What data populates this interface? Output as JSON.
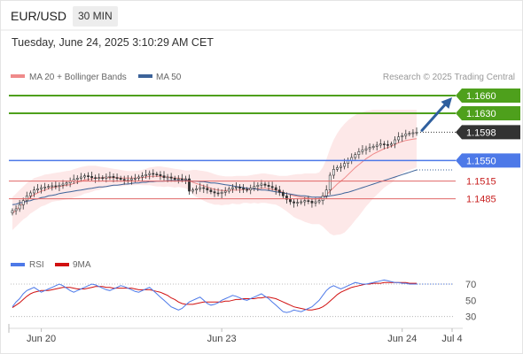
{
  "header": {
    "symbol": "EUR/USD",
    "timeframe": "30 MIN",
    "timestamp": "Tuesday, June 24, 2025 3:10:29 AM CET"
  },
  "legend": {
    "ma20": "MA 20 + Bollinger Bands",
    "ma50": "MA 50",
    "credit": "Research © 2025 Trading Central",
    "rsi": "RSI",
    "rsi_ma": "9MA"
  },
  "colors": {
    "green": "#4ea01c",
    "blue_line": "#4d79e8",
    "red_line": "#e06666",
    "dark": "#333333",
    "arrow": "#2f5f9e",
    "ma20": "#ef8a8a",
    "ma50": "#3c6399",
    "band_fill": "#fbd9d9",
    "rsi_line": "#4d79e8",
    "rsi_ma_line": "#d11010",
    "candle": "#333333"
  },
  "chart_data": [
    {
      "type": "candlestick",
      "title": "EUR/USD",
      "x_ticks": [
        "Jun 20",
        "Jun 23",
        "Jun 24",
        "Jul 4"
      ],
      "ylim": [
        1.142,
        1.1675
      ],
      "current_price": 1.1598,
      "levels": [
        {
          "value": 1.166,
          "label": "1.1660",
          "style": "green"
        },
        {
          "value": 1.163,
          "label": "1.1630",
          "style": "green"
        },
        {
          "value": 1.1598,
          "label": "1.1598",
          "style": "current"
        },
        {
          "value": 1.155,
          "label": "1.1550",
          "style": "blue"
        },
        {
          "value": 1.1515,
          "label": "1.1515",
          "style": "red"
        },
        {
          "value": 1.1485,
          "label": "1.1485",
          "style": "red"
        }
      ],
      "projection_target": 1.166,
      "close": [
        1.1465,
        1.1468,
        1.1475,
        1.1482,
        1.149,
        1.1495,
        1.15,
        1.1502,
        1.1504,
        1.1505,
        1.1506,
        1.1507,
        1.1506,
        1.1508,
        1.151,
        1.1512,
        1.1515,
        1.1518,
        1.152,
        1.1522,
        1.1524,
        1.1523,
        1.1521,
        1.152,
        1.1521,
        1.152,
        1.1522,
        1.1523,
        1.1521,
        1.152,
        1.1518,
        1.1516,
        1.1517,
        1.1519,
        1.152,
        1.1522,
        1.1524,
        1.1526,
        1.1528,
        1.1527,
        1.1526,
        1.1524,
        1.1521,
        1.1522,
        1.152,
        1.1518,
        1.1519,
        1.1518,
        1.1519,
        1.1498,
        1.15,
        1.1502,
        1.1504,
        1.1503,
        1.15,
        1.1497,
        1.1495,
        1.1494,
        1.1496,
        1.1498,
        1.1502,
        1.1504,
        1.1505,
        1.1503,
        1.1501,
        1.15,
        1.1503,
        1.1506,
        1.1508,
        1.151,
        1.1508,
        1.1506,
        1.1504,
        1.15,
        1.1496,
        1.149,
        1.1484,
        1.148,
        1.1478,
        1.1479,
        1.148,
        1.1482,
        1.1481,
        1.1478,
        1.148,
        1.1482,
        1.149,
        1.15,
        1.1525,
        1.1535,
        1.1538,
        1.154,
        1.1545,
        1.155,
        1.1555,
        1.156,
        1.1565,
        1.1568,
        1.157,
        1.1572,
        1.1574,
        1.1576,
        1.1578,
        1.1577,
        1.1576,
        1.1578,
        1.1585,
        1.159,
        1.1592,
        1.1595,
        1.1596,
        1.1597,
        1.1598
      ],
      "ma20": [
        1.146,
        1.1466,
        1.1472,
        1.1478,
        1.1483,
        1.1488,
        1.1492,
        1.1495,
        1.1498,
        1.15,
        1.1502,
        1.1504,
        1.1505,
        1.1506,
        1.1507,
        1.1508,
        1.1509,
        1.1511,
        1.1513,
        1.1515,
        1.1517,
        1.1518,
        1.1519,
        1.152,
        1.152,
        1.1521,
        1.1521,
        1.1521,
        1.1521,
        1.1521,
        1.152,
        1.152,
        1.152,
        1.152,
        1.152,
        1.1521,
        1.1521,
        1.1522,
        1.1523,
        1.1523,
        1.1523,
        1.1523,
        1.1522,
        1.1522,
        1.1521,
        1.152,
        1.152,
        1.1519,
        1.1518,
        1.1516,
        1.1513,
        1.1511,
        1.1509,
        1.1507,
        1.1505,
        1.1503,
        1.1501,
        1.15,
        1.1499,
        1.1499,
        1.1499,
        1.15,
        1.15,
        1.15,
        1.1501,
        1.1501,
        1.1501,
        1.1502,
        1.1502,
        1.1503,
        1.1503,
        1.1502,
        1.1501,
        1.15,
        1.1498,
        1.1496,
        1.1494,
        1.1492,
        1.149,
        1.1489,
        1.1488,
        1.1487,
        1.1486,
        1.1485,
        1.1485,
        1.1486,
        1.1488,
        1.1492,
        1.1498,
        1.1504,
        1.151,
        1.1515,
        1.152,
        1.1526,
        1.1532,
        1.1538,
        1.1543,
        1.1548,
        1.1553,
        1.1557,
        1.1561,
        1.1564,
        1.1567,
        1.157,
        1.1572,
        1.1574,
        1.1577,
        1.158,
        1.1582,
        1.1584,
        1.1585,
        1.1586,
        1.1587
      ],
      "bollinger_upper": [
        1.1488,
        1.1494,
        1.15,
        1.1506,
        1.1512,
        1.1516,
        1.152,
        1.1522,
        1.1524,
        1.1526,
        1.1527,
        1.1528,
        1.1529,
        1.153,
        1.1531,
        1.1532,
        1.1533,
        1.1535,
        1.1537,
        1.1539,
        1.154,
        1.1541,
        1.1541,
        1.1541,
        1.154,
        1.1539,
        1.1538,
        1.1537,
        1.1536,
        1.1535,
        1.1534,
        1.1533,
        1.1532,
        1.1532,
        1.1532,
        1.1533,
        1.1534,
        1.1536,
        1.1538,
        1.1539,
        1.154,
        1.154,
        1.1539,
        1.1538,
        1.1537,
        1.1536,
        1.1535,
        1.1534,
        1.1533,
        1.1533,
        1.1534,
        1.1534,
        1.1533,
        1.1532,
        1.1531,
        1.1529,
        1.1527,
        1.1525,
        1.1524,
        1.1523,
        1.1523,
        1.1523,
        1.1524,
        1.1524,
        1.1524,
        1.1524,
        1.1525,
        1.1526,
        1.1527,
        1.1528,
        1.1528,
        1.1527,
        1.1526,
        1.1525,
        1.1524,
        1.1524,
        1.1524,
        1.1525,
        1.1526,
        1.1527,
        1.1527,
        1.1528,
        1.1528,
        1.1528,
        1.1528,
        1.153,
        1.1538,
        1.1552,
        1.157,
        1.1585,
        1.1596,
        1.1605,
        1.1612,
        1.1618,
        1.1623,
        1.1627,
        1.163,
        1.1632,
        1.1634,
        1.1635,
        1.1636,
        1.1636,
        1.1636,
        1.1636,
        1.1636,
        1.1636,
        1.1636,
        1.1636,
        1.1636,
        1.1636,
        1.1636,
        1.1636,
        1.1636
      ],
      "bollinger_lower": [
        1.1432,
        1.1438,
        1.1444,
        1.145,
        1.1454,
        1.146,
        1.1464,
        1.1468,
        1.1472,
        1.1474,
        1.1477,
        1.148,
        1.1481,
        1.1482,
        1.1483,
        1.1484,
        1.1485,
        1.1487,
        1.1489,
        1.1491,
        1.1494,
        1.1495,
        1.1497,
        1.1499,
        1.15,
        1.1503,
        1.1504,
        1.1505,
        1.1506,
        1.1507,
        1.1506,
        1.1507,
        1.1508,
        1.1508,
        1.1508,
        1.1509,
        1.1508,
        1.1508,
        1.1508,
        1.1507,
        1.1506,
        1.1506,
        1.1505,
        1.1506,
        1.1505,
        1.1504,
        1.1505,
        1.1504,
        1.1503,
        1.1499,
        1.1492,
        1.1488,
        1.1485,
        1.1482,
        1.1479,
        1.1477,
        1.1475,
        1.1475,
        1.1474,
        1.1475,
        1.1475,
        1.1477,
        1.1476,
        1.1476,
        1.1478,
        1.1478,
        1.1477,
        1.1478,
        1.1477,
        1.1478,
        1.1478,
        1.1477,
        1.1476,
        1.1475,
        1.1472,
        1.1468,
        1.1464,
        1.1459,
        1.1454,
        1.1451,
        1.1449,
        1.1446,
        1.1444,
        1.1442,
        1.1442,
        1.1442,
        1.1438,
        1.1432,
        1.1426,
        1.1423,
        1.1424,
        1.1425,
        1.1428,
        1.1434,
        1.1441,
        1.1449,
        1.1456,
        1.1464,
        1.1472,
        1.1479,
        1.1486,
        1.1492,
        1.1498,
        1.1504,
        1.1508,
        1.1512,
        1.1518,
        1.1524,
        1.1528,
        1.1532,
        1.1534,
        1.1536,
        1.1538
      ],
      "ma50": [
        1.1475,
        1.1476,
        1.1478,
        1.1479,
        1.1481,
        1.1482,
        1.1484,
        1.1485,
        1.1487,
        1.1488,
        1.149,
        1.1491,
        1.1492,
        1.1494,
        1.1495,
        1.1496,
        1.1497,
        1.1498,
        1.1499,
        1.15,
        1.1501,
        1.1502,
        1.1503,
        1.1504,
        1.1505,
        1.1505,
        1.1506,
        1.1507,
        1.1508,
        1.1508,
        1.1509,
        1.151,
        1.151,
        1.1511,
        1.1512,
        1.1512,
        1.1513,
        1.1513,
        1.1514,
        1.1514,
        1.1515,
        1.1515,
        1.1515,
        1.1516,
        1.1516,
        1.1516,
        1.1516,
        1.1516,
        1.1516,
        1.1516,
        1.1515,
        1.1515,
        1.1514,
        1.1514,
        1.1513,
        1.1512,
        1.1512,
        1.1511,
        1.151,
        1.1509,
        1.1508,
        1.1507,
        1.1506,
        1.1505,
        1.1504,
        1.1503,
        1.1502,
        1.1502,
        1.1501,
        1.15,
        1.15,
        1.1499,
        1.1498,
        1.1497,
        1.1496,
        1.1495,
        1.1494,
        1.1493,
        1.1492,
        1.1491,
        1.149,
        1.149,
        1.1489,
        1.1488,
        1.1488,
        1.1488,
        1.1488,
        1.1489,
        1.149,
        1.1491,
        1.1492,
        1.1493,
        1.1495,
        1.1496,
        1.1498,
        1.15,
        1.1502,
        1.1504,
        1.1506,
        1.1508,
        1.151,
        1.1512,
        1.1514,
        1.1516,
        1.1518,
        1.152,
        1.1522,
        1.1524,
        1.1526,
        1.1528,
        1.153,
        1.1532,
        1.1534
      ]
    },
    {
      "type": "line",
      "title": "RSI",
      "ylim": [
        22,
        82
      ],
      "y_ticks": [
        70,
        50,
        30
      ],
      "series": [
        {
          "name": "RSI",
          "values": [
            42,
            48,
            52,
            58,
            62,
            64,
            66,
            63,
            60,
            62,
            64,
            66,
            68,
            70,
            68,
            65,
            62,
            60,
            62,
            64,
            66,
            68,
            70,
            69,
            67,
            65,
            63,
            62,
            64,
            66,
            68,
            67,
            65,
            63,
            61,
            60,
            62,
            64,
            66,
            62,
            58,
            54,
            50,
            46,
            42,
            40,
            38,
            40,
            44,
            48,
            50,
            52,
            54,
            50,
            46,
            44,
            45,
            47,
            50,
            52,
            54,
            56,
            55,
            53,
            51,
            50,
            52,
            54,
            56,
            58,
            55,
            52,
            48,
            44,
            40,
            36,
            35,
            36,
            38,
            37,
            36,
            38,
            40,
            42,
            46,
            50,
            56,
            62,
            66,
            68,
            66,
            64,
            66,
            68,
            70,
            72,
            71,
            70,
            70,
            71,
            72,
            73,
            74,
            75,
            74,
            73,
            72,
            72,
            71,
            71,
            70,
            70,
            70
          ]
        },
        {
          "name": "9MA",
          "values": [
            41,
            44,
            47,
            51,
            55,
            58,
            60,
            61,
            62,
            62,
            62,
            63,
            64,
            65,
            66,
            66,
            66,
            65,
            64,
            64,
            64,
            65,
            66,
            67,
            67,
            67,
            66,
            66,
            65,
            65,
            65,
            65,
            65,
            65,
            64,
            63,
            63,
            63,
            63,
            62,
            61,
            60,
            58,
            56,
            53,
            51,
            48,
            46,
            45,
            45,
            45,
            46,
            47,
            48,
            48,
            48,
            48,
            48,
            48,
            49,
            49,
            50,
            51,
            51,
            52,
            52,
            52,
            52,
            53,
            53,
            54,
            54,
            53,
            52,
            50,
            48,
            46,
            44,
            42,
            41,
            40,
            39,
            38,
            38,
            39,
            40,
            42,
            45,
            49,
            53,
            57,
            60,
            62,
            64,
            66,
            67,
            68,
            69,
            70,
            70,
            71,
            71,
            71,
            72,
            72,
            72,
            72,
            72,
            72,
            72,
            71,
            71,
            71
          ]
        }
      ]
    }
  ]
}
